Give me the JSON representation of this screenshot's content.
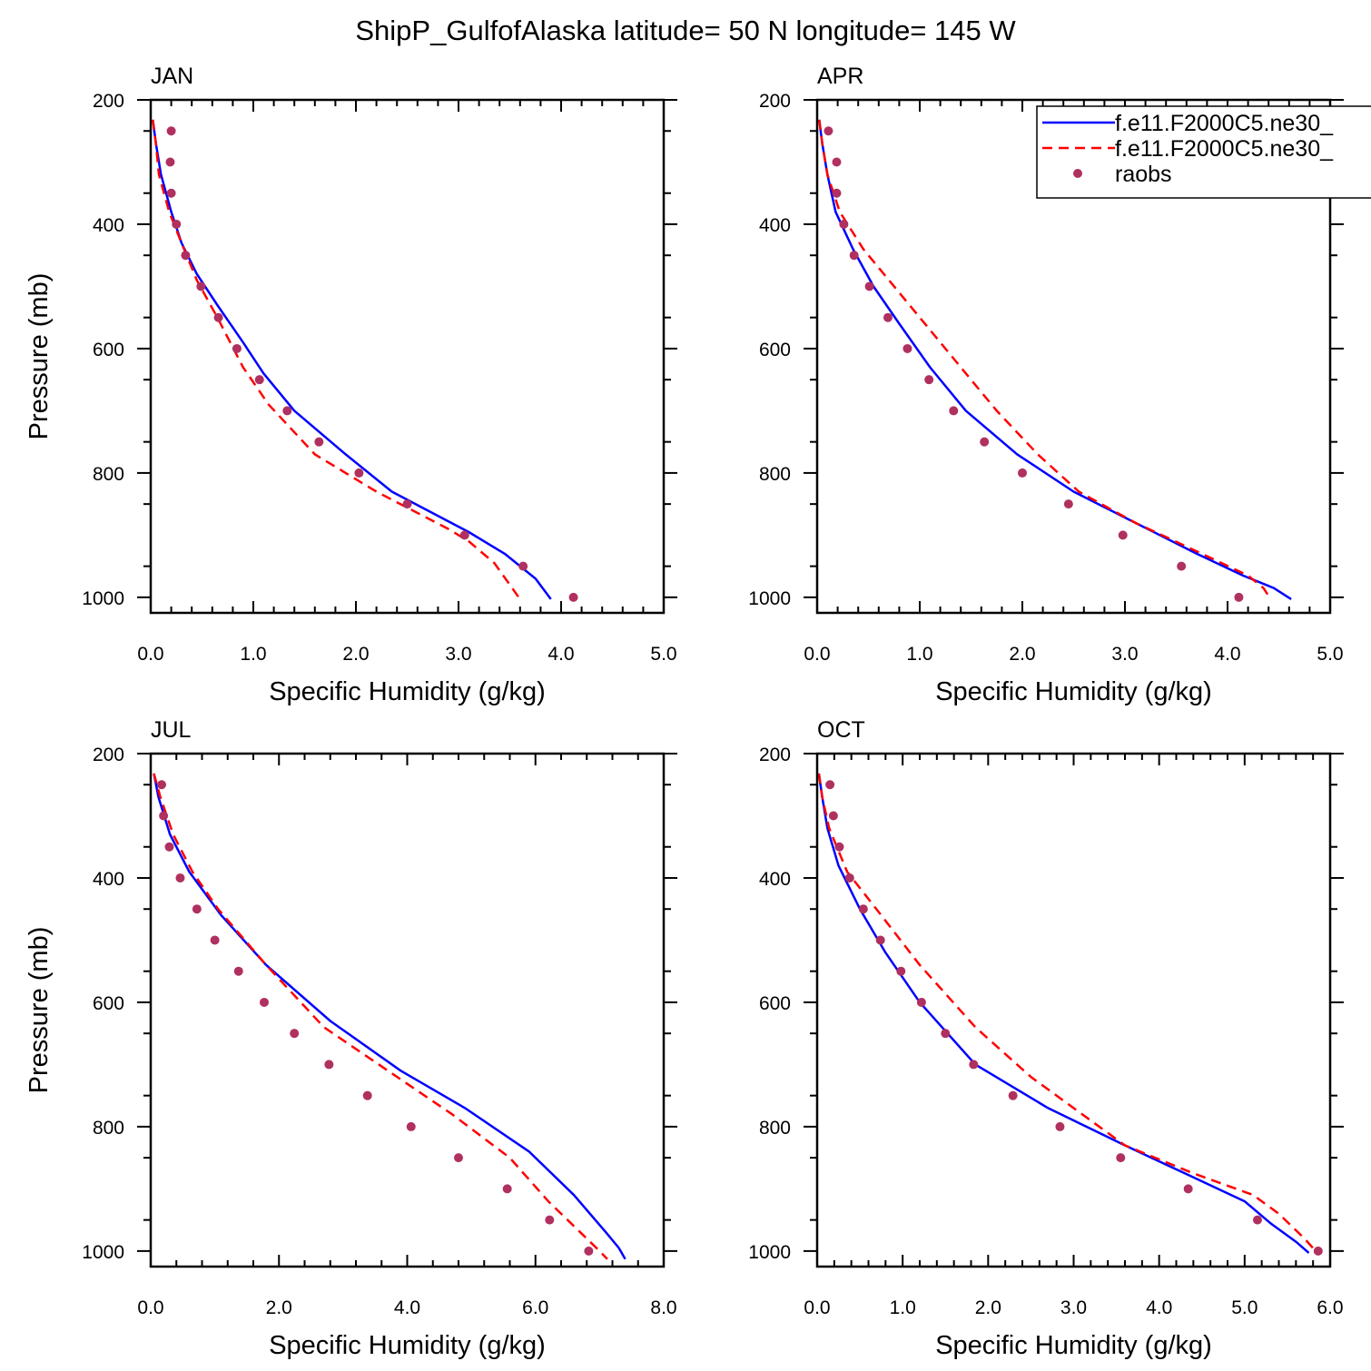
{
  "title": "ShipP_GulfofAlaska  latitude= 50 N longitude= 145 W",
  "colors": {
    "model1": "#0000ff",
    "model2": "#ff0000",
    "obs": "#b03060"
  },
  "legend": {
    "entries": [
      {
        "label": "f.e11.F2000C5.ne30_",
        "style": "solid",
        "color": "#0000ff"
      },
      {
        "label": "f.e11.F2000C5.ne30_",
        "style": "dashed",
        "color": "#ff0000"
      },
      {
        "label": "raobs",
        "style": "marker",
        "color": "#b03060"
      }
    ],
    "position": "top-right of APR panel"
  },
  "chart_data": [
    {
      "type": "line",
      "panel_title": "JAN",
      "xlabel": "Specific Humidity (g/kg)",
      "ylabel": "Pressure (mb)",
      "xlim": [
        0,
        5
      ],
      "xticks": [
        0,
        1,
        2,
        3,
        4,
        5
      ],
      "xtick_labels": [
        "0.0",
        "1.0",
        "2.0",
        "3.0",
        "4.0",
        "5.0"
      ],
      "ylim": [
        200,
        1025
      ],
      "y_reversed": true,
      "yticks": [
        200,
        400,
        600,
        800,
        1000
      ],
      "yticklabels": [
        "200",
        "400",
        "600",
        "800",
        "1000"
      ],
      "series": [
        {
          "name": "f.e11.F2000C5.ne30_",
          "style": "solid",
          "color": "#0000ff",
          "points": [
            [
              0.02,
              232
            ],
            [
              0.05,
              270
            ],
            [
              0.1,
              320
            ],
            [
              0.2,
              380
            ],
            [
              0.3,
              430
            ],
            [
              0.45,
              480
            ],
            [
              0.65,
              530
            ],
            [
              0.9,
              590
            ],
            [
              1.1,
              640
            ],
            [
              1.4,
              700
            ],
            [
              1.9,
              770
            ],
            [
              2.35,
              830
            ],
            [
              3.1,
              895
            ],
            [
              3.45,
              930
            ],
            [
              3.75,
              970
            ],
            [
              3.9,
              1003
            ]
          ]
        },
        {
          "name": "f.e11.F2000C5.ne30_",
          "style": "dashed",
          "color": "#ff0000",
          "points": [
            [
              0.02,
              232
            ],
            [
              0.05,
              270
            ],
            [
              0.08,
              320
            ],
            [
              0.18,
              380
            ],
            [
              0.3,
              430
            ],
            [
              0.45,
              490
            ],
            [
              0.65,
              550
            ],
            [
              0.9,
              630
            ],
            [
              1.15,
              690
            ],
            [
              1.6,
              770
            ],
            [
              2.2,
              830
            ],
            [
              2.9,
              890
            ],
            [
              3.1,
              910
            ],
            [
              3.35,
              945
            ],
            [
              3.6,
              1003
            ]
          ]
        },
        {
          "name": "raobs",
          "style": "marker",
          "color": "#b03060",
          "points": [
            [
              0.2,
              250
            ],
            [
              0.19,
              300
            ],
            [
              0.2,
              350
            ],
            [
              0.25,
              400
            ],
            [
              0.34,
              450
            ],
            [
              0.49,
              500
            ],
            [
              0.66,
              550
            ],
            [
              0.84,
              600
            ],
            [
              1.06,
              650
            ],
            [
              1.33,
              700
            ],
            [
              1.64,
              750
            ],
            [
              2.03,
              800
            ],
            [
              2.5,
              850
            ],
            [
              3.06,
              900
            ],
            [
              3.63,
              950
            ],
            [
              4.12,
              1000
            ]
          ]
        }
      ]
    },
    {
      "type": "line",
      "panel_title": "APR",
      "xlabel": "Specific Humidity (g/kg)",
      "ylabel": "",
      "xlim": [
        0,
        5
      ],
      "xticks": [
        0,
        1,
        2,
        3,
        4,
        5
      ],
      "xtick_labels": [
        "0.0",
        "1.0",
        "2.0",
        "3.0",
        "4.0",
        "5.0"
      ],
      "ylim": [
        200,
        1025
      ],
      "y_reversed": true,
      "yticks": [
        200,
        400,
        600,
        800,
        1000
      ],
      "yticklabels": [
        "200",
        "400",
        "600",
        "800",
        "1000"
      ],
      "series": [
        {
          "name": "f.e11.F2000C5.ne30_",
          "style": "solid",
          "color": "#0000ff",
          "points": [
            [
              0.02,
              232
            ],
            [
              0.05,
              270
            ],
            [
              0.1,
              320
            ],
            [
              0.18,
              380
            ],
            [
              0.35,
              440
            ],
            [
              0.55,
              500
            ],
            [
              0.8,
              560
            ],
            [
              1.1,
              630
            ],
            [
              1.45,
              700
            ],
            [
              1.95,
              770
            ],
            [
              2.5,
              830
            ],
            [
              3.1,
              880
            ],
            [
              3.7,
              930
            ],
            [
              4.15,
              965
            ],
            [
              4.45,
              985
            ],
            [
              4.62,
              1003
            ]
          ]
        },
        {
          "name": "f.e11.F2000C5.ne30_",
          "style": "dashed",
          "color": "#ff0000",
          "points": [
            [
              0.02,
              232
            ],
            [
              0.05,
              270
            ],
            [
              0.1,
              320
            ],
            [
              0.22,
              380
            ],
            [
              0.45,
              440
            ],
            [
              0.8,
              510
            ],
            [
              1.1,
              570
            ],
            [
              1.45,
              640
            ],
            [
              1.75,
              700
            ],
            [
              2.15,
              770
            ],
            [
              2.55,
              830
            ],
            [
              3.1,
              880
            ],
            [
              3.75,
              930
            ],
            [
              4.2,
              965
            ],
            [
              4.35,
              985
            ],
            [
              4.42,
              1003
            ]
          ]
        },
        {
          "name": "raobs",
          "style": "marker",
          "color": "#b03060",
          "points": [
            [
              0.11,
              250
            ],
            [
              0.19,
              300
            ],
            [
              0.19,
              350
            ],
            [
              0.26,
              400
            ],
            [
              0.36,
              450
            ],
            [
              0.51,
              500
            ],
            [
              0.69,
              550
            ],
            [
              0.88,
              600
            ],
            [
              1.09,
              650
            ],
            [
              1.33,
              700
            ],
            [
              1.63,
              750
            ],
            [
              2.0,
              800
            ],
            [
              2.45,
              850
            ],
            [
              2.98,
              900
            ],
            [
              3.55,
              950
            ],
            [
              4.11,
              1000
            ]
          ]
        }
      ]
    },
    {
      "type": "line",
      "panel_title": "JUL",
      "xlabel": "Specific Humidity (g/kg)",
      "ylabel": "Pressure (mb)",
      "xlim": [
        0,
        8
      ],
      "xticks": [
        0,
        2,
        4,
        6,
        8
      ],
      "xtick_labels": [
        "0.0",
        "2.0",
        "4.0",
        "6.0",
        "8.0"
      ],
      "ylim": [
        200,
        1025
      ],
      "y_reversed": true,
      "yticks": [
        200,
        400,
        600,
        800,
        1000
      ],
      "yticklabels": [
        "200",
        "400",
        "600",
        "800",
        "1000"
      ],
      "series": [
        {
          "name": "f.e11.F2000C5.ne30_",
          "style": "solid",
          "color": "#0000ff",
          "points": [
            [
              0.05,
              232
            ],
            [
              0.12,
              270
            ],
            [
              0.3,
              330
            ],
            [
              0.6,
              390
            ],
            [
              1.1,
              460
            ],
            [
              1.8,
              540
            ],
            [
              2.8,
              630
            ],
            [
              3.9,
              710
            ],
            [
              4.9,
              770
            ],
            [
              5.9,
              840
            ],
            [
              6.6,
              910
            ],
            [
              7.1,
              970
            ],
            [
              7.3,
              995
            ],
            [
              7.4,
              1013
            ]
          ]
        },
        {
          "name": "f.e11.F2000C5.ne30_",
          "style": "dashed",
          "color": "#ff0000",
          "points": [
            [
              0.05,
              232
            ],
            [
              0.15,
              270
            ],
            [
              0.35,
              330
            ],
            [
              0.65,
              390
            ],
            [
              1.05,
              450
            ],
            [
              1.8,
              540
            ],
            [
              2.7,
              640
            ],
            [
              3.7,
              710
            ],
            [
              4.7,
              780
            ],
            [
              5.6,
              850
            ],
            [
              6.2,
              920
            ],
            [
              6.7,
              970
            ],
            [
              7.0,
              1000
            ],
            [
              7.12,
              1013
            ]
          ]
        },
        {
          "name": "raobs",
          "style": "marker",
          "color": "#b03060",
          "points": [
            [
              0.17,
              250
            ],
            [
              0.2,
              300
            ],
            [
              0.29,
              350
            ],
            [
              0.46,
              400
            ],
            [
              0.72,
              450
            ],
            [
              1.0,
              500
            ],
            [
              1.37,
              550
            ],
            [
              1.77,
              600
            ],
            [
              2.24,
              650
            ],
            [
              2.78,
              700
            ],
            [
              3.38,
              750
            ],
            [
              4.06,
              800
            ],
            [
              4.8,
              850
            ],
            [
              5.56,
              900
            ],
            [
              6.22,
              950
            ],
            [
              6.83,
              1000
            ]
          ]
        }
      ]
    },
    {
      "type": "line",
      "panel_title": "OCT",
      "xlabel": "Specific Humidity (g/kg)",
      "ylabel": "",
      "xlim": [
        0,
        6
      ],
      "xticks": [
        0,
        1,
        2,
        3,
        4,
        5,
        6
      ],
      "xtick_labels": [
        "0.0",
        "1.0",
        "2.0",
        "3.0",
        "4.0",
        "5.0",
        "6.0"
      ],
      "ylim": [
        200,
        1025
      ],
      "y_reversed": true,
      "yticks": [
        200,
        400,
        600,
        800,
        1000
      ],
      "yticklabels": [
        "200",
        "400",
        "600",
        "800",
        "1000"
      ],
      "series": [
        {
          "name": "f.e11.F2000C5.ne30_",
          "style": "solid",
          "color": "#0000ff",
          "points": [
            [
              0.02,
              232
            ],
            [
              0.06,
              270
            ],
            [
              0.12,
              320
            ],
            [
              0.25,
              380
            ],
            [
              0.5,
              450
            ],
            [
              0.8,
              520
            ],
            [
              1.2,
              600
            ],
            [
              1.85,
              700
            ],
            [
              2.7,
              770
            ],
            [
              3.6,
              830
            ],
            [
              4.3,
              875
            ],
            [
              5.0,
              920
            ],
            [
              5.3,
              955
            ],
            [
              5.6,
              985
            ],
            [
              5.75,
              1003
            ]
          ]
        },
        {
          "name": "f.e11.F2000C5.ne30_",
          "style": "dashed",
          "color": "#ff0000",
          "points": [
            [
              0.02,
              232
            ],
            [
              0.06,
              270
            ],
            [
              0.14,
              320
            ],
            [
              0.35,
              390
            ],
            [
              0.75,
              460
            ],
            [
              1.2,
              540
            ],
            [
              1.85,
              640
            ],
            [
              2.5,
              720
            ],
            [
              3.0,
              770
            ],
            [
              3.6,
              830
            ],
            [
              4.4,
              875
            ],
            [
              5.1,
              910
            ],
            [
              5.4,
              940
            ],
            [
              5.7,
              980
            ],
            [
              5.85,
              1003
            ]
          ]
        },
        {
          "name": "raobs",
          "style": "marker",
          "color": "#b03060",
          "points": [
            [
              0.15,
              250
            ],
            [
              0.19,
              300
            ],
            [
              0.26,
              350
            ],
            [
              0.38,
              400
            ],
            [
              0.54,
              450
            ],
            [
              0.74,
              500
            ],
            [
              0.98,
              550
            ],
            [
              1.22,
              600
            ],
            [
              1.5,
              650
            ],
            [
              1.83,
              700
            ],
            [
              2.29,
              750
            ],
            [
              2.84,
              800
            ],
            [
              3.55,
              850
            ],
            [
              4.34,
              900
            ],
            [
              5.15,
              950
            ],
            [
              5.86,
              1000
            ]
          ]
        }
      ]
    }
  ]
}
